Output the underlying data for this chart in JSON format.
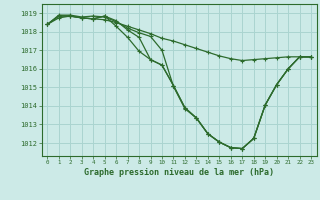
{
  "title": "Graphe pression niveau de la mer (hPa)",
  "bg_color": "#cceae7",
  "grid_color": "#aad4d0",
  "line_color": "#2d6b2d",
  "xlim": [
    -0.5,
    23.5
  ],
  "ylim": [
    1011.3,
    1019.5
  ],
  "yticks": [
    1012,
    1013,
    1014,
    1015,
    1016,
    1017,
    1018,
    1019
  ],
  "xticks": [
    0,
    1,
    2,
    3,
    4,
    5,
    6,
    7,
    8,
    9,
    10,
    11,
    12,
    13,
    14,
    15,
    16,
    17,
    18,
    19,
    20,
    21,
    22,
    23
  ],
  "series": [
    [
      1018.4,
      1018.75,
      1018.85,
      1018.75,
      1018.7,
      1018.65,
      1018.5,
      1018.3,
      1018.1,
      1017.9,
      1017.65,
      1017.5,
      1017.3,
      1017.1,
      1016.9,
      1016.7,
      1016.55,
      1016.45,
      1016.5,
      1016.55,
      1016.6,
      1016.65,
      1016.65,
      1016.65
    ],
    [
      1018.4,
      1018.9,
      1018.9,
      1018.8,
      1018.85,
      1018.8,
      1018.55,
      1018.2,
      1017.95,
      1017.75,
      1017.0,
      1015.05,
      1013.85,
      1013.35,
      1012.5,
      1012.05,
      1011.75,
      1011.7,
      1012.25,
      1014.05,
      1015.15,
      1016.0,
      1016.65,
      1016.65
    ],
    [
      1018.4,
      1018.85,
      1018.85,
      1018.75,
      1018.7,
      1018.85,
      1018.6,
      1018.1,
      1017.7,
      1016.5,
      1016.2,
      1015.1,
      1013.9,
      1013.35,
      1012.5,
      1012.05,
      1011.75,
      1011.7,
      1012.25,
      1014.05,
      1015.15,
      1016.0,
      1016.65,
      1016.65
    ],
    [
      1018.4,
      1018.85,
      1018.85,
      1018.75,
      1018.7,
      1018.85,
      1018.3,
      1017.7,
      1016.95,
      1016.5,
      1016.2,
      1015.1,
      1013.9,
      1013.35,
      1012.5,
      1012.05,
      1011.75,
      1011.7,
      1012.25,
      1014.05,
      1015.15,
      1016.0,
      1016.65,
      1016.65
    ]
  ]
}
